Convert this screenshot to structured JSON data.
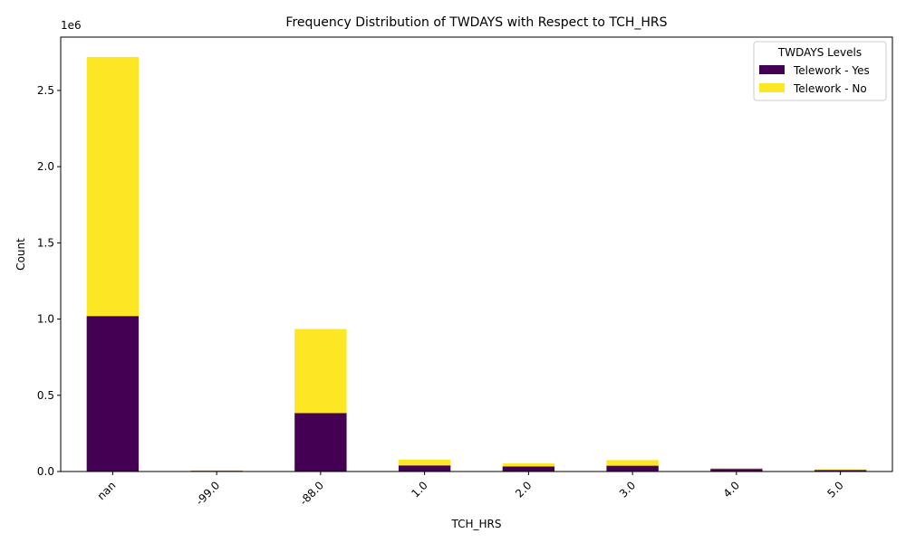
{
  "chart_data": {
    "type": "bar",
    "stacked": true,
    "title": "Frequency Distribution of TWDAYS with Respect to TCH_HRS",
    "xlabel": "TCH_HRS",
    "ylabel": "Count",
    "y_offset_label": "1e6",
    "categories": [
      "nan",
      "-99.0",
      "-88.0",
      "1.0",
      "2.0",
      "3.0",
      "4.0",
      "5.0"
    ],
    "series": [
      {
        "name": "Telework - Yes",
        "color": "#440154",
        "values": [
          1020000,
          5000,
          383000,
          40000,
          33000,
          38000,
          17000,
          10000
        ]
      },
      {
        "name": "Telework - No",
        "color": "#fde725",
        "values": [
          1700000,
          2000,
          552000,
          37000,
          20000,
          37000,
          7000,
          5000
        ]
      }
    ],
    "ylim": [
      0,
      2850000
    ],
    "yticks": [
      0,
      500000,
      1000000,
      1500000,
      2000000,
      2500000
    ],
    "ytick_labels": [
      "0.0",
      "0.5",
      "1.0",
      "1.5",
      "2.0",
      "2.5"
    ],
    "legend": {
      "title": "TWDAYS Levels",
      "placement": "top-right"
    },
    "grid": false
  }
}
